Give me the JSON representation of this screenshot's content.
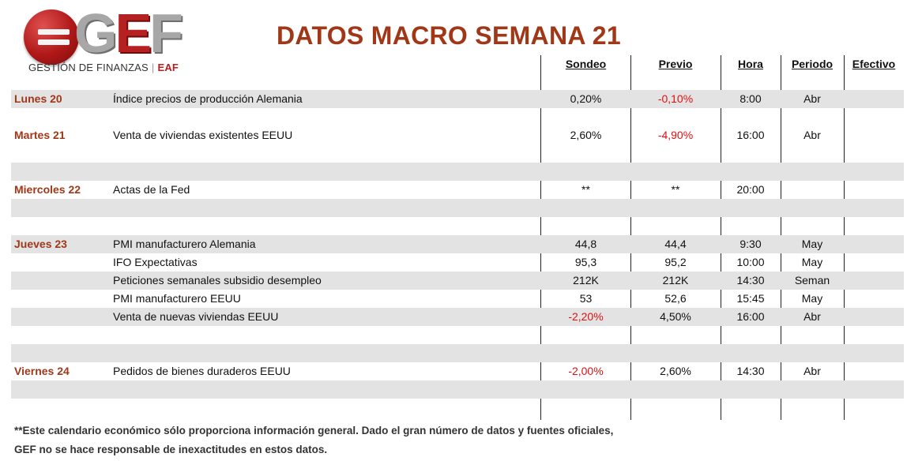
{
  "logo": {
    "mark": "GEF",
    "subtitle": "GESTIÓN DE FINANZAS",
    "eaf": "EAF"
  },
  "title": "DATOS MACRO SEMANA 21",
  "columns": [
    "Sondeo",
    "Previo",
    "Hora",
    "Periodo",
    "Efectivo"
  ],
  "rows": [
    {
      "day": "Lunes 20",
      "event": "Índice precios de producción Alemania",
      "sondeo": "0,20%",
      "previo": "-0,10%",
      "hora": "8:00",
      "periodo": "Abr",
      "efectivo": "",
      "shade": true
    },
    {
      "day": "",
      "event": "",
      "sondeo": "",
      "previo": "",
      "hora": "",
      "periodo": "",
      "efectivo": "",
      "shade": false
    },
    {
      "day": "Martes 21",
      "event": "Venta de viviendas existentes EEUU",
      "sondeo": "2,60%",
      "previo": "-4,90%",
      "hora": "16:00",
      "periodo": "Abr",
      "efectivo": "",
      "shade": false
    },
    {
      "day": "",
      "event": "",
      "sondeo": "",
      "previo": "",
      "hora": "",
      "periodo": "",
      "efectivo": "",
      "shade": false
    },
    {
      "day": "",
      "event": "",
      "sondeo": "",
      "previo": "",
      "hora": "",
      "periodo": "",
      "efectivo": "",
      "shade": true
    },
    {
      "day": "Miercoles 22",
      "event": "Actas de la Fed",
      "sondeo": "**",
      "previo": "**",
      "hora": "20:00",
      "periodo": "",
      "efectivo": "",
      "shade": false
    },
    {
      "day": "",
      "event": "",
      "sondeo": "",
      "previo": "",
      "hora": "",
      "periodo": "",
      "efectivo": "",
      "shade": true
    },
    {
      "day": "",
      "event": "",
      "sondeo": "",
      "previo": "",
      "hora": "",
      "periodo": "",
      "efectivo": "",
      "shade": false
    },
    {
      "day": "Jueves 23",
      "event": "PMI manufacturero Alemania",
      "sondeo": "44,8",
      "previo": "44,4",
      "hora": "9:30",
      "periodo": "May",
      "efectivo": "",
      "shade": true
    },
    {
      "day": "",
      "event": "IFO Expectativas",
      "sondeo": "95,3",
      "previo": "95,2",
      "hora": "10:00",
      "periodo": "May",
      "efectivo": "",
      "shade": false
    },
    {
      "day": "",
      "event": "Peticiones semanales subsidio desempleo",
      "sondeo": "212K",
      "previo": "212K",
      "hora": "14:30",
      "periodo": "Seman",
      "efectivo": "",
      "shade": true
    },
    {
      "day": "",
      "event": "PMI manufacturero EEUU",
      "sondeo": "53",
      "previo": "52,6",
      "hora": "15:45",
      "periodo": "May",
      "efectivo": "",
      "shade": false
    },
    {
      "day": "",
      "event": "Venta de nuevas viviendas EEUU",
      "sondeo": "-2,20%",
      "previo": "4,50%",
      "hora": "16:00",
      "periodo": "Abr",
      "efectivo": "",
      "shade": true
    },
    {
      "day": "",
      "event": "",
      "sondeo": "",
      "previo": "",
      "hora": "",
      "periodo": "",
      "efectivo": "",
      "shade": false
    },
    {
      "day": "",
      "event": "",
      "sondeo": "",
      "previo": "",
      "hora": "",
      "periodo": "",
      "efectivo": "",
      "shade": true
    },
    {
      "day": "Viernes 24",
      "event": "Pedidos de bienes duraderos EEUU",
      "sondeo": "-2,00%",
      "previo": "2,60%",
      "hora": "14:30",
      "periodo": "Abr",
      "efectivo": "",
      "shade": false
    },
    {
      "day": "",
      "event": "",
      "sondeo": "",
      "previo": "",
      "hora": "",
      "periodo": "",
      "efectivo": "",
      "shade": true
    }
  ],
  "note": [
    "**Este calendario económico sólo proporciona información general. Dado el gran número de datos y fuentes oficiales,",
    "GEF no se hace responsable de inexactitudes en estos datos."
  ],
  "colors": {
    "accent": "#a03818",
    "negative": "#e01010",
    "shade": "#e3e3e3",
    "logo_red": "#b52020"
  }
}
